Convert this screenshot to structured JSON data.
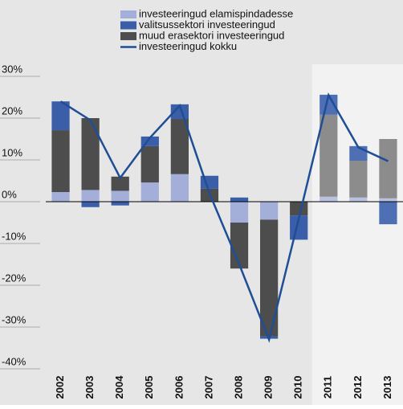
{
  "chart_data": {
    "type": "bar",
    "categories": [
      "2002",
      "2003",
      "2004",
      "2005",
      "2006",
      "2007",
      "2008",
      "2009",
      "2010",
      "2011",
      "2012",
      "2013"
    ],
    "series": [
      {
        "name": "investeeringud elamispindadesse",
        "color": "#a3afd9",
        "colors": [
          "#a3afd9",
          "#a3afd9",
          "#a3afd9",
          "#a3afd9",
          "#a3afd9",
          "#a3afd9",
          "#a3afd9",
          "#a3afd9",
          "#a3afd9",
          "#b9c1e0",
          "#b9c1e0",
          "#b9c1e0"
        ],
        "values": [
          2.3,
          2.8,
          2.6,
          4.6,
          6.6,
          0,
          -5,
          -4.3,
          0,
          1.2,
          1,
          0.8
        ]
      },
      {
        "name": "valitsussektori investeeringud",
        "color": "#3b5ea8",
        "colors": [
          "#3b5ea8",
          "#3b5ea8",
          "#3b5ea8",
          "#3b5ea8",
          "#3b5ea8",
          "#3b5ea8",
          "#3b5ea8",
          "#3b5ea8",
          "#3b5ea8",
          "#4f6fb4",
          "#4f6fb4",
          "#4f6fb4"
        ],
        "values": [
          6.9,
          -1.3,
          -0.9,
          2.3,
          3.5,
          3.1,
          1,
          -0.6,
          -5.8,
          4.8,
          3.5,
          -5.4
        ]
      },
      {
        "name": "muud erasektori investeeringud",
        "color": "#4d4d4d",
        "colors": [
          "#4d4d4d",
          "#4d4d4d",
          "#4d4d4d",
          "#4d4d4d",
          "#4d4d4d",
          "#4d4d4d",
          "#4d4d4d",
          "#4d4d4d",
          "#4d4d4d",
          "#8c8c8c",
          "#8c8c8c",
          "#8c8c8c"
        ],
        "values": [
          14.8,
          17.2,
          3.4,
          8.7,
          13.2,
          3.1,
          -11,
          -27.9,
          -3.3,
          19.6,
          8.8,
          14.2
        ]
      },
      {
        "name": "investeeringud kokku",
        "type": "line",
        "color": "#1f4e96",
        "values": [
          24,
          19.5,
          5.7,
          15.3,
          23,
          2,
          -15,
          -33,
          -4,
          25.5,
          13,
          9.7
        ]
      }
    ],
    "stack_order": [
      0,
      2,
      1
    ],
    "ylim": [
      -40,
      30
    ],
    "yticks": [
      {
        "value": 30,
        "label": "30%"
      },
      {
        "value": 20,
        "label": "20%"
      },
      {
        "value": 10,
        "label": "10%"
      },
      {
        "value": 0,
        "label": "0%"
      },
      {
        "value": -10,
        "label": "-10%"
      },
      {
        "value": -20,
        "label": "-20%"
      },
      {
        "value": -30,
        "label": "-30%"
      },
      {
        "value": -40,
        "label": "-40%"
      }
    ],
    "shade_color": "#f2f2f2",
    "background": "#e6e6e6"
  }
}
